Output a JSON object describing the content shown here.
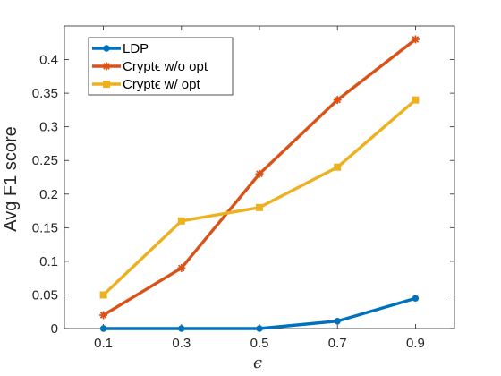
{
  "chart_data": {
    "type": "line",
    "title": "",
    "xlabel": "ϵ",
    "ylabel": "Avg F1 score",
    "categories": [
      "0.1",
      "0.3",
      "0.5",
      "0.7",
      "0.9"
    ],
    "x": [
      0.1,
      0.3,
      0.5,
      0.7,
      0.9
    ],
    "xlim": [
      0.0,
      1.0
    ],
    "ylim": [
      0,
      0.45
    ],
    "yticks": [
      0,
      0.05,
      0.1,
      0.15,
      0.2,
      0.25,
      0.3,
      0.35,
      0.4
    ],
    "ytick_labels": [
      "0",
      "0.05",
      "0.1",
      "0.15",
      "0.2",
      "0.25",
      "0.3",
      "0.35",
      "0.4"
    ],
    "grid": false,
    "legend_position": "top-left",
    "series": [
      {
        "name": "LDP",
        "color": "#0072BD",
        "marker": "circle",
        "values": [
          0.0,
          0.0,
          0.0,
          0.011,
          0.045
        ]
      },
      {
        "name": "Cryptϵ w/o opt",
        "color": "#D95319",
        "marker": "asterisk",
        "values": [
          0.02,
          0.09,
          0.23,
          0.34,
          0.43
        ]
      },
      {
        "name": "Cryptϵ w/ opt",
        "color": "#EDB120",
        "marker": "square",
        "values": [
          0.05,
          0.16,
          0.18,
          0.24,
          0.34
        ]
      }
    ]
  }
}
